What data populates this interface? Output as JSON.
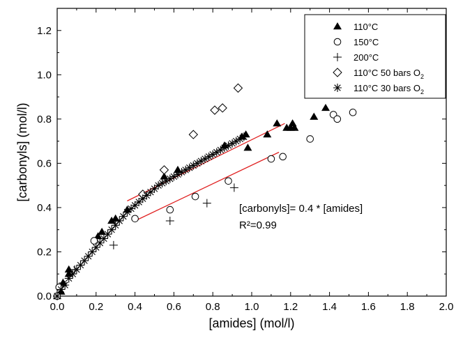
{
  "chart_data": {
    "type": "scatter",
    "xlabel": "[amides] (mol/l)",
    "ylabel": "[carbonyls] (mol/l)",
    "xlim": [
      0,
      2.0
    ],
    "ylim": [
      0,
      1.3
    ],
    "xticks": [
      "0.0",
      "0.2",
      "0.4",
      "0.6",
      "0.8",
      "1.0",
      "1.2",
      "1.4",
      "1.6",
      "1.8",
      "2.0"
    ],
    "yticks": [
      "0.0",
      "0.2",
      "0.4",
      "0.6",
      "0.8",
      "1.0",
      "1.2"
    ],
    "grid": false,
    "legend_position": "top-right",
    "series": [
      {
        "name": "110°C",
        "marker": "filled-triangle",
        "points": [
          [
            0.0,
            0.0
          ],
          [
            0.02,
            0.02
          ],
          [
            0.03,
            0.06
          ],
          [
            0.06,
            0.1
          ],
          [
            0.06,
            0.12
          ],
          [
            0.21,
            0.27
          ],
          [
            0.23,
            0.29
          ],
          [
            0.28,
            0.34
          ],
          [
            0.3,
            0.35
          ],
          [
            0.36,
            0.39
          ],
          [
            0.55,
            0.54
          ],
          [
            0.62,
            0.57
          ],
          [
            0.86,
            0.68
          ],
          [
            0.95,
            0.72
          ],
          [
            0.97,
            0.73
          ],
          [
            0.98,
            0.67
          ],
          [
            1.08,
            0.73
          ],
          [
            1.13,
            0.78
          ],
          [
            1.18,
            0.76
          ],
          [
            1.2,
            0.76
          ],
          [
            1.21,
            0.78
          ],
          [
            1.22,
            0.76
          ],
          [
            1.32,
            0.81
          ],
          [
            1.38,
            0.85
          ]
        ]
      },
      {
        "name": "150°C",
        "marker": "open-circle",
        "points": [
          [
            0.0,
            0.0
          ],
          [
            0.01,
            0.04
          ],
          [
            0.19,
            0.25
          ],
          [
            0.4,
            0.35
          ],
          [
            0.58,
            0.39
          ],
          [
            0.71,
            0.45
          ],
          [
            0.88,
            0.52
          ],
          [
            1.1,
            0.62
          ],
          [
            1.16,
            0.63
          ],
          [
            1.3,
            0.71
          ],
          [
            1.42,
            0.82
          ],
          [
            1.44,
            0.8
          ],
          [
            1.52,
            0.83
          ]
        ]
      },
      {
        "name": "200°C",
        "marker": "plus",
        "points": [
          [
            0.0,
            0.0
          ],
          [
            0.03,
            0.06
          ],
          [
            0.09,
            0.12
          ],
          [
            0.29,
            0.23
          ],
          [
            0.58,
            0.34
          ],
          [
            0.77,
            0.42
          ],
          [
            0.91,
            0.49
          ]
        ]
      },
      {
        "name": "110°C 50 bars O",
        "name_sub": "2",
        "marker": "open-diamond",
        "points": [
          [
            0.44,
            0.46
          ],
          [
            0.55,
            0.57
          ],
          [
            0.7,
            0.73
          ],
          [
            0.81,
            0.84
          ],
          [
            0.85,
            0.85
          ],
          [
            0.93,
            0.94
          ]
        ]
      },
      {
        "name": "110°C 30 bars O",
        "name_sub": "2",
        "marker": "asterisk",
        "points": [
          [
            0.0,
            0.0
          ],
          [
            0.02,
            0.03
          ],
          [
            0.04,
            0.05
          ],
          [
            0.06,
            0.08
          ],
          [
            0.08,
            0.1
          ],
          [
            0.1,
            0.12
          ],
          [
            0.12,
            0.14
          ],
          [
            0.14,
            0.16
          ],
          [
            0.16,
            0.18
          ],
          [
            0.18,
            0.2
          ],
          [
            0.2,
            0.22
          ],
          [
            0.22,
            0.24
          ],
          [
            0.24,
            0.26
          ],
          [
            0.26,
            0.28
          ],
          [
            0.28,
            0.3
          ],
          [
            0.3,
            0.32
          ],
          [
            0.32,
            0.34
          ],
          [
            0.34,
            0.36
          ],
          [
            0.36,
            0.38
          ],
          [
            0.38,
            0.395
          ],
          [
            0.4,
            0.41
          ],
          [
            0.42,
            0.425
          ],
          [
            0.44,
            0.44
          ],
          [
            0.46,
            0.455
          ],
          [
            0.48,
            0.47
          ],
          [
            0.5,
            0.485
          ],
          [
            0.52,
            0.5
          ],
          [
            0.54,
            0.51
          ],
          [
            0.56,
            0.52
          ],
          [
            0.58,
            0.53
          ],
          [
            0.6,
            0.54
          ],
          [
            0.62,
            0.55
          ],
          [
            0.64,
            0.56
          ],
          [
            0.66,
            0.57
          ],
          [
            0.68,
            0.58
          ],
          [
            0.7,
            0.59
          ],
          [
            0.72,
            0.6
          ],
          [
            0.74,
            0.61
          ],
          [
            0.76,
            0.62
          ],
          [
            0.78,
            0.63
          ],
          [
            0.8,
            0.64
          ],
          [
            0.82,
            0.65
          ],
          [
            0.84,
            0.66
          ],
          [
            0.86,
            0.67
          ],
          [
            0.88,
            0.68
          ],
          [
            0.9,
            0.69
          ],
          [
            0.92,
            0.7
          ],
          [
            0.94,
            0.71
          ],
          [
            0.96,
            0.72
          ]
        ]
      }
    ],
    "fit_lines": [
      {
        "color": "#e02020",
        "from": [
          0.36,
          0.43
        ],
        "to": [
          1.17,
          0.78
        ]
      },
      {
        "color": "#e02020",
        "from": [
          0.4,
          0.34
        ],
        "to": [
          1.14,
          0.65
        ]
      }
    ],
    "annotation": {
      "equation": "[carbonyls]= 0.4 * [amides]",
      "r2": "R²=0.99",
      "anchor": [
        1.05,
        0.36
      ]
    }
  }
}
